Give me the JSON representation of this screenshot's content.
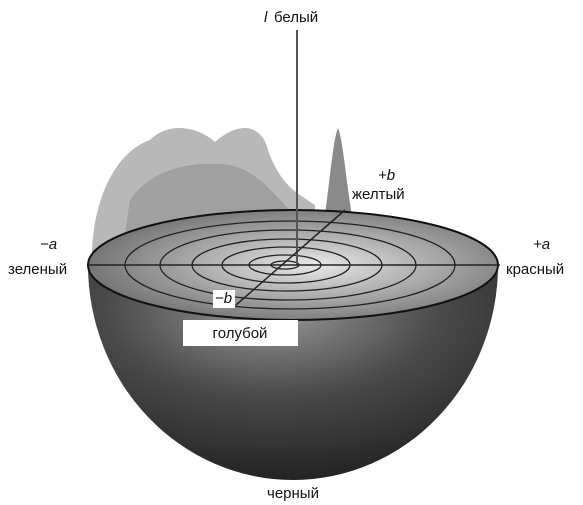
{
  "labels": {
    "l_axis": "l",
    "white": "белый",
    "plus_b": "+b",
    "yellow": "желтый",
    "minus_a": "−a",
    "green": "зеленый",
    "plus_a": "+a",
    "red": "красный",
    "minus_b": "−b",
    "blue": "голубой",
    "black": "черный"
  }
}
